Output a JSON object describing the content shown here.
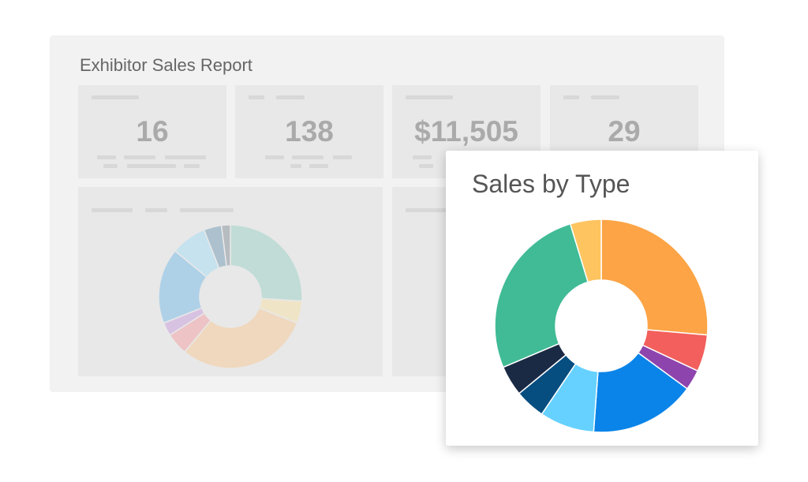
{
  "report": {
    "title": "Exhibitor Sales Report",
    "stats": [
      {
        "value": "16"
      },
      {
        "value": "138"
      },
      {
        "value": "$11,505"
      },
      {
        "value": "29"
      }
    ]
  },
  "chart_data": [
    {
      "type": "pie",
      "variant": "donut",
      "title": "Sales by Type",
      "slices_percent": [
        26.4,
        5.6,
        3.1,
        16.1,
        8.3,
        4.6,
        4.6,
        26.7,
        4.7
      ],
      "colors": [
        "#fca446",
        "#f25f5c",
        "#8e44ad",
        "#0a84e8",
        "#66d1ff",
        "#064d80",
        "#1b2a44",
        "#40bb96",
        "#fec45f"
      ],
      "start": "top, clockwise"
    },
    {
      "type": "pie",
      "variant": "donut",
      "faded": true,
      "slices_percent": [
        26,
        5,
        30,
        5,
        3,
        17,
        8,
        4,
        2
      ],
      "colors": [
        "#bfdcd6",
        "#f1e4c6",
        "#f0d8bc",
        "#eec2c4",
        "#d8c0e2",
        "#acd0e8",
        "#c4e2ef",
        "#a9bfcc",
        "#b5babf"
      ],
      "start": "top, clockwise"
    }
  ]
}
